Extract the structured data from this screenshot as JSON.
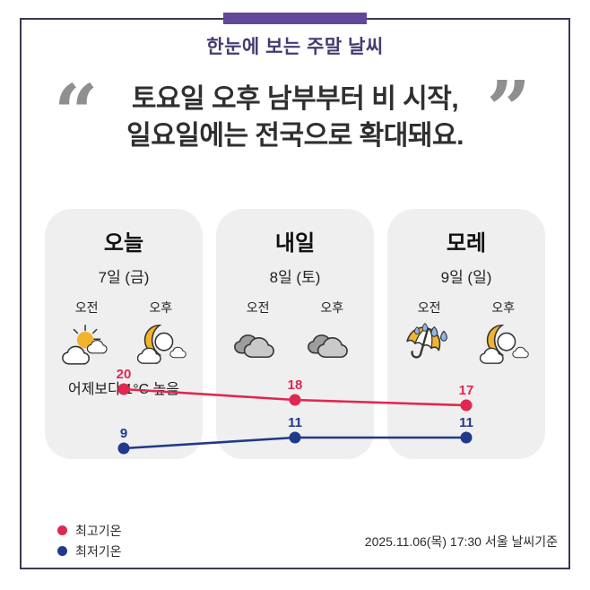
{
  "header": {
    "title": "한눈에 보는 주말 날씨"
  },
  "quote": {
    "line1": "토요일 오후 남부부터 비 시작,",
    "line2": "일요일에는 전국으로 확대돼요.",
    "open_mark": "“",
    "close_mark": "”"
  },
  "cards": [
    {
      "title": "오늘",
      "date": "7일 (금)",
      "morning_label": "오전",
      "afternoon_label": "오후",
      "morning_icon": "sun-behind-cloud",
      "afternoon_icon": "moon-with-cloud",
      "note": "어제보다 1°C 높음"
    },
    {
      "title": "내일",
      "date": "8일 (토)",
      "morning_label": "오전",
      "afternoon_label": "오후",
      "morning_icon": "cloudy",
      "afternoon_icon": "cloudy",
      "note": ""
    },
    {
      "title": "모레",
      "date": "9일 (일)",
      "morning_label": "오전",
      "afternoon_label": "오후",
      "morning_icon": "umbrella-rain",
      "afternoon_icon": "moon-with-cloud",
      "note": ""
    }
  ],
  "chart_data": {
    "type": "line",
    "categories": [
      "오늘 7일(금)",
      "내일 8일(토)",
      "모레 9일(일)"
    ],
    "series": [
      {
        "name": "최고기온",
        "color": "#e02750",
        "values": [
          20,
          18,
          17
        ]
      },
      {
        "name": "최저기온",
        "color": "#20398b",
        "values": [
          9,
          11,
          11
        ]
      }
    ],
    "unit": "°C",
    "grid": false,
    "legend_position": "bottom-left",
    "point_labels": true
  },
  "legend": [
    {
      "label": "최고기온",
      "color": "#e02750"
    },
    {
      "label": "최저기온",
      "color": "#20398b"
    }
  ],
  "footer": {
    "source": "2025.11.06(목) 17:30 서울 날씨기준"
  },
  "colors": {
    "accent_purple": "#60489a",
    "title_purple": "#473a72",
    "border": "#3e3752",
    "card_bg": "#efeff0",
    "high_temp": "#e02750",
    "low_temp": "#20398b"
  }
}
